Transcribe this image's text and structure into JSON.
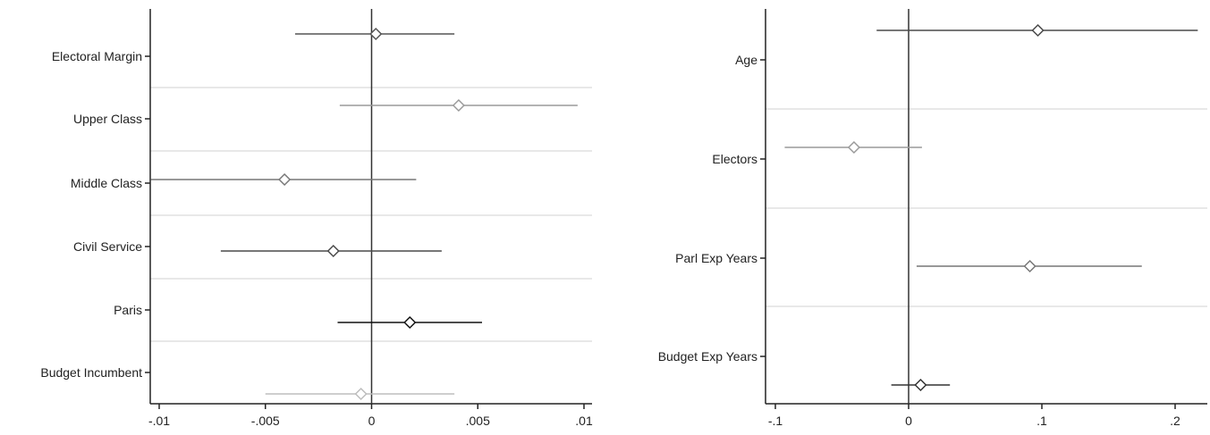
{
  "chart_data": [
    {
      "type": "scatter",
      "subtype": "coefficient-plot",
      "title": "",
      "xlabel": "",
      "ylabel": "",
      "xlim": [
        -0.0105,
        0.0105
      ],
      "xticks": [
        {
          "value": -0.01,
          "label": "-.01"
        },
        {
          "value": -0.005,
          "label": "-.005"
        },
        {
          "value": 0,
          "label": "0"
        },
        {
          "value": 0.005,
          "label": ".005"
        },
        {
          "value": 0.01,
          "label": ".01"
        }
      ],
      "reference_line": 0,
      "grid": "horizontal separators between categories",
      "categories": [
        "Electoral Margin",
        "Upper Class",
        "Middle Class",
        "Civil Service",
        "Paris",
        "Budget Incumbent"
      ],
      "estimates": [
        {
          "estimate": 0.0002,
          "ci_low": -0.0036,
          "ci_high": 0.0039,
          "color": "#555555"
        },
        {
          "estimate": 0.0041,
          "ci_low": -0.0015,
          "ci_high": 0.0097,
          "color": "#9a9a9a"
        },
        {
          "estimate": -0.0041,
          "ci_low": -0.0104,
          "ci_high": 0.0021,
          "color": "#777777"
        },
        {
          "estimate": -0.0018,
          "ci_low": -0.0071,
          "ci_high": 0.0033,
          "color": "#4a4a4a"
        },
        {
          "estimate": 0.0018,
          "ci_low": -0.0016,
          "ci_high": 0.0052,
          "color": "#111111"
        },
        {
          "estimate": -0.0005,
          "ci_low": -0.005,
          "ci_high": 0.0039,
          "color": "#bdbdbd"
        }
      ]
    },
    {
      "type": "scatter",
      "subtype": "coefficient-plot",
      "title": "",
      "xlabel": "",
      "ylabel": "",
      "xlim": [
        -0.105,
        0.22
      ],
      "xticks": [
        {
          "value": -0.1,
          "label": "-.1"
        },
        {
          "value": 0,
          "label": "0"
        },
        {
          "value": 0.1,
          "label": ".1"
        },
        {
          "value": 0.2,
          "label": ".2"
        }
      ],
      "reference_line": 0,
      "grid": "horizontal separators between categories",
      "categories": [
        "Age",
        "Electors",
        "Parl Exp Years",
        "Budget Exp Years"
      ],
      "estimates": [
        {
          "estimate": 0.097,
          "ci_low": -0.024,
          "ci_high": 0.217,
          "color": "#4a4a4a"
        },
        {
          "estimate": -0.041,
          "ci_low": -0.093,
          "ci_high": 0.01,
          "color": "#9a9a9a"
        },
        {
          "estimate": 0.091,
          "ci_low": 0.006,
          "ci_high": 0.175,
          "color": "#777777"
        },
        {
          "estimate": 0.009,
          "ci_low": -0.013,
          "ci_high": 0.031,
          "color": "#333333"
        }
      ]
    }
  ]
}
